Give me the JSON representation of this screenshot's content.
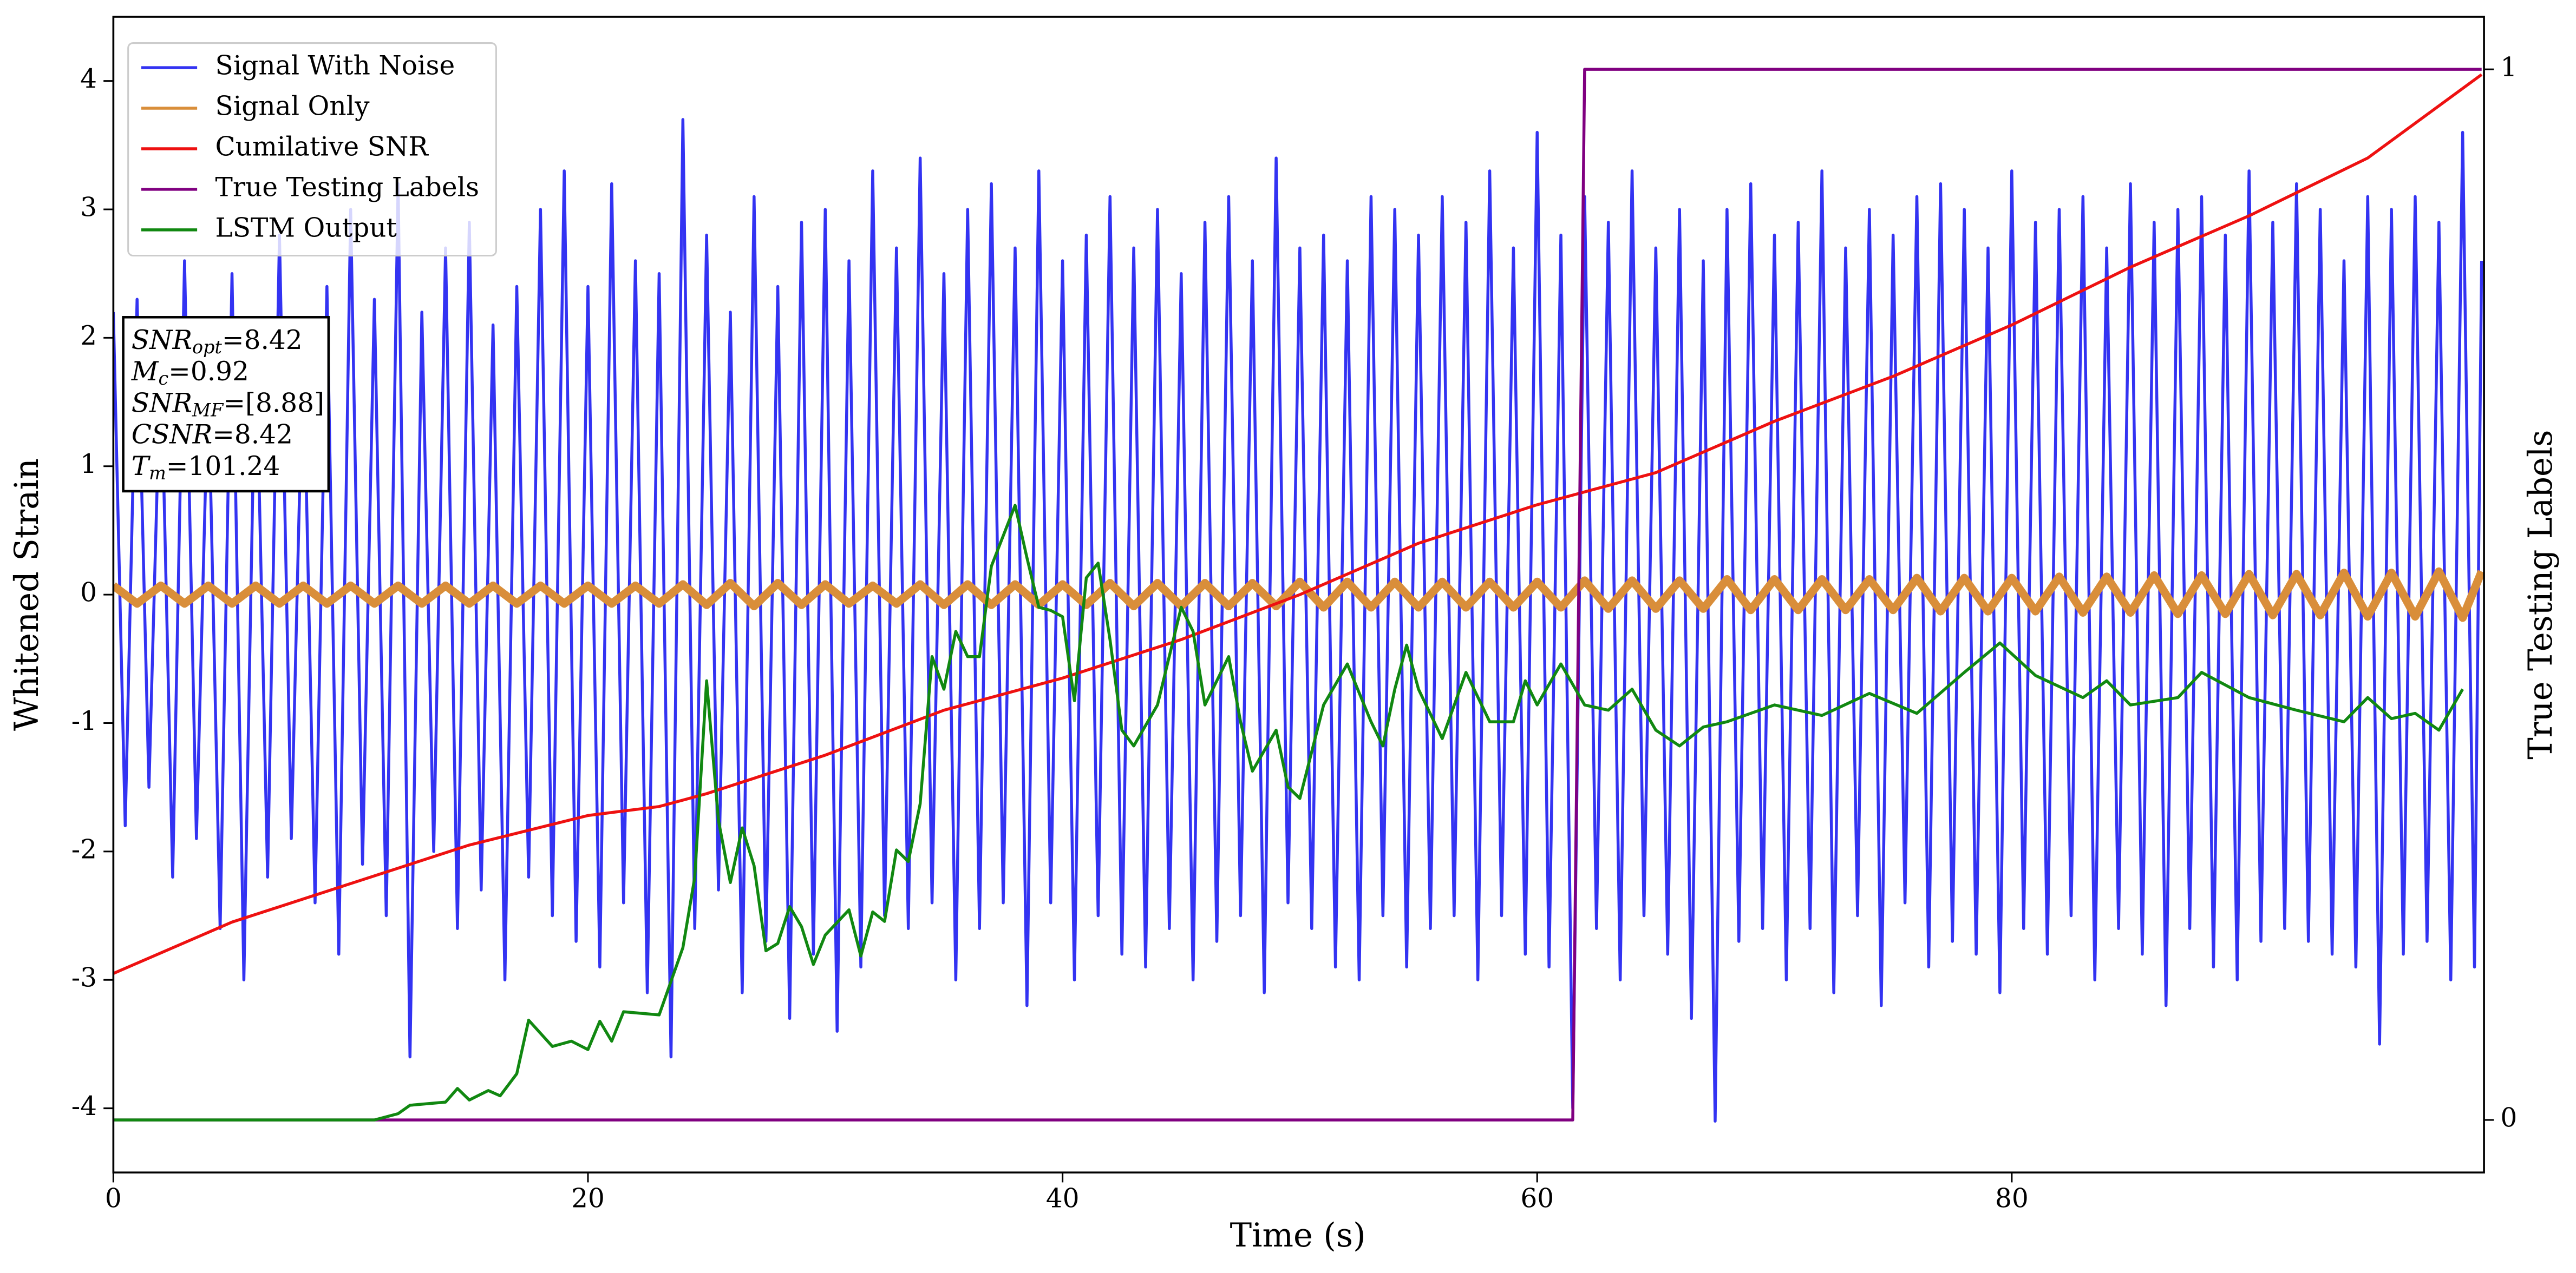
{
  "chart_data": {
    "type": "line",
    "xlabel": "Time (s)",
    "ylabel": "Whitened Strain",
    "y2label": "True Testing Labels",
    "xlim": [
      0,
      99.9
    ],
    "xticks": [
      0,
      20,
      40,
      60,
      80
    ],
    "ylim": [
      -4.5,
      4.5
    ],
    "yticks": [
      -4,
      -3,
      -2,
      -1,
      0,
      1,
      2,
      3,
      4
    ],
    "y2lim": [
      -0.05,
      1.05
    ],
    "y2ticks": [
      0,
      1
    ],
    "legend": "upper left",
    "annotation": [
      {
        "main": "SNR",
        "sub": "opt",
        "rest": "=8.42"
      },
      {
        "main": "M",
        "sub": "c",
        "rest": "=0.92"
      },
      {
        "main": "SNR",
        "sub": "MF",
        "rest": "=[8.88]"
      },
      {
        "main": "CSNR",
        "rest": "=8.42"
      },
      {
        "main": "T",
        "sub": "m",
        "rest": "=101.24"
      }
    ],
    "series": [
      {
        "name": "Signal With Noise",
        "color": "#3333f2",
        "x": [
          0,
          0.5,
          1,
          1.5,
          2,
          2.5,
          3,
          3.5,
          4,
          4.5,
          5,
          5.5,
          6,
          6.5,
          7,
          7.5,
          8,
          8.5,
          9,
          9.5,
          10,
          10.5,
          11,
          11.5,
          12,
          12.5,
          13,
          13.5,
          14,
          14.5,
          15,
          15.5,
          16,
          16.5,
          17,
          17.5,
          18,
          18.5,
          19,
          19.5,
          20,
          20.5,
          21,
          21.5,
          22,
          22.5,
          23,
          23.5,
          24,
          24.5,
          25,
          25.5,
          26,
          26.5,
          27,
          27.5,
          28,
          28.5,
          29,
          29.5,
          30,
          30.5,
          31,
          31.5,
          32,
          32.5,
          33,
          33.5,
          34,
          34.5,
          35,
          35.5,
          36,
          36.5,
          37,
          37.5,
          38,
          38.5,
          39,
          39.5,
          40,
          40.5,
          41,
          41.5,
          42,
          42.5,
          43,
          43.5,
          44,
          44.5,
          45,
          45.5,
          46,
          46.5,
          47,
          47.5,
          48,
          48.5,
          49,
          49.5,
          50,
          50.5,
          51,
          51.5,
          52,
          52.5,
          53,
          53.5,
          54,
          54.5,
          55,
          55.5,
          56,
          56.5,
          57,
          57.5,
          58,
          58.5,
          59,
          59.5,
          60,
          60.5,
          61,
          61.5,
          62,
          62.5,
          63,
          63.5,
          64,
          64.5,
          65,
          65.5,
          66,
          66.5,
          67,
          67.5,
          68,
          68.5,
          69,
          69.5,
          70,
          70.5,
          71,
          71.5,
          72,
          72.5,
          73,
          73.5,
          74,
          74.5,
          75,
          75.5,
          76,
          76.5,
          77,
          77.5,
          78,
          78.5,
          79,
          79.5,
          80,
          80.5,
          81,
          81.5,
          82,
          82.5,
          83,
          83.5,
          84,
          84.5,
          85,
          85.5,
          86,
          86.5,
          87,
          87.5,
          88,
          88.5,
          89,
          89.5,
          90,
          90.5,
          91,
          91.5,
          92,
          92.5,
          93,
          93.5,
          94,
          94.5,
          95,
          95.5,
          96,
          96.5,
          97,
          97.5,
          98,
          98.5,
          99,
          99.5,
          99.8
        ],
        "values": [
          2.2,
          -1.8,
          2.3,
          -1.5,
          1.9,
          -2.2,
          2.6,
          -1.9,
          1.7,
          -2.6,
          2.5,
          -3.0,
          2.1,
          -2.2,
          2.8,
          -1.9,
          2.0,
          -2.4,
          2.4,
          -2.8,
          3.0,
          -2.1,
          2.3,
          -2.5,
          3.2,
          -3.6,
          2.2,
          -2.0,
          2.7,
          -2.6,
          2.9,
          -2.3,
          2.1,
          -3.0,
          2.4,
          -2.2,
          3.0,
          -2.5,
          3.3,
          -2.7,
          2.4,
          -2.9,
          3.2,
          -2.4,
          2.6,
          -3.1,
          2.5,
          -3.6,
          3.7,
          -2.6,
          2.8,
          -2.3,
          2.2,
          -3.1,
          3.1,
          -2.7,
          2.4,
          -3.3,
          2.9,
          -2.8,
          3.0,
          -3.4,
          2.6,
          -2.9,
          3.3,
          -2.5,
          2.7,
          -2.6,
          3.4,
          -2.4,
          2.5,
          -3.0,
          3.0,
          -2.6,
          3.2,
          -2.4,
          2.7,
          -3.2,
          3.3,
          -2.4,
          2.6,
          -3.0,
          2.8,
          -2.5,
          3.1,
          -2.8,
          2.7,
          -2.9,
          3.0,
          -2.6,
          2.5,
          -3.0,
          2.9,
          -2.7,
          3.1,
          -2.5,
          2.6,
          -3.1,
          3.4,
          -2.4,
          2.7,
          -2.6,
          2.8,
          -2.9,
          2.6,
          -3.0,
          3.1,
          -2.5,
          3.0,
          -2.9,
          2.8,
          -2.6,
          3.1,
          -2.5,
          2.9,
          -3.0,
          3.3,
          -2.5,
          2.7,
          -2.8,
          3.6,
          -2.9,
          2.8,
          -4.0,
          3.1,
          -2.6,
          2.9,
          -3.0,
          3.3,
          -2.5,
          2.7,
          -2.8,
          3.0,
          -3.3,
          2.6,
          -4.1,
          3.0,
          -2.7,
          3.2,
          -2.6,
          2.8,
          -3.0,
          2.9,
          -2.6,
          3.3,
          -3.1,
          2.7,
          -2.5,
          3.0,
          -3.2,
          2.8,
          -2.4,
          3.1,
          -2.9,
          3.2,
          -2.7,
          3.0,
          -2.8,
          2.7,
          -3.1,
          3.3,
          -2.6,
          2.9,
          -2.8,
          3.0,
          -2.5,
          3.1,
          -3.0,
          2.7,
          -2.6,
          3.2,
          -2.8,
          2.9,
          -3.2,
          3.0,
          -2.6,
          3.1,
          -2.9,
          2.8,
          -3.0,
          3.3,
          -2.7,
          2.9,
          -2.6,
          3.2,
          -2.7,
          3.0,
          -2.8,
          2.6,
          -2.9,
          3.1,
          -3.5,
          3.0,
          -2.8,
          3.1,
          -2.7,
          2.9,
          -3.0,
          3.6,
          -2.9,
          2.6
        ]
      },
      {
        "name": "Signal Only",
        "color": "#d98e3a",
        "x": [
          0,
          1,
          2,
          3,
          4,
          5,
          6,
          7,
          8,
          9,
          10,
          11,
          12,
          13,
          14,
          15,
          16,
          17,
          18,
          19,
          20,
          21,
          22,
          23,
          24,
          25,
          26,
          27,
          28,
          29,
          30,
          31,
          32,
          33,
          34,
          35,
          36,
          37,
          38,
          39,
          40,
          41,
          42,
          43,
          44,
          45,
          46,
          47,
          48,
          49,
          50,
          51,
          52,
          53,
          54,
          55,
          56,
          57,
          58,
          59,
          60,
          61,
          62,
          63,
          64,
          65,
          66,
          67,
          68,
          69,
          70,
          71,
          72,
          73,
          74,
          75,
          76,
          77,
          78,
          79,
          80,
          81,
          82,
          83,
          84,
          85,
          86,
          87,
          88,
          89,
          90,
          91,
          92,
          93,
          94,
          95,
          96,
          97,
          98,
          99,
          99.8
        ],
        "values": [
          0.07,
          -0.07,
          0.07,
          -0.07,
          0.07,
          -0.07,
          0.07,
          -0.07,
          0.07,
          -0.07,
          0.07,
          -0.07,
          0.07,
          -0.07,
          0.07,
          -0.07,
          0.07,
          -0.07,
          0.07,
          -0.07,
          0.07,
          -0.07,
          0.07,
          -0.07,
          0.08,
          -0.08,
          0.09,
          -0.09,
          0.09,
          -0.08,
          0.08,
          -0.07,
          0.07,
          -0.07,
          0.08,
          -0.08,
          0.08,
          -0.08,
          0.08,
          -0.08,
          0.08,
          -0.08,
          0.09,
          -0.09,
          0.09,
          -0.09,
          0.09,
          -0.09,
          0.09,
          -0.09,
          0.1,
          -0.1,
          0.1,
          -0.1,
          0.1,
          -0.1,
          0.1,
          -0.1,
          0.1,
          -0.1,
          0.1,
          -0.1,
          0.11,
          -0.11,
          0.11,
          -0.11,
          0.11,
          -0.11,
          0.12,
          -0.12,
          0.12,
          -0.12,
          0.12,
          -0.12,
          0.12,
          -0.12,
          0.13,
          -0.13,
          0.13,
          -0.13,
          0.13,
          -0.13,
          0.14,
          -0.14,
          0.14,
          -0.14,
          0.15,
          -0.15,
          0.15,
          -0.15,
          0.16,
          -0.16,
          0.16,
          -0.16,
          0.17,
          -0.17,
          0.17,
          -0.17,
          0.18,
          -0.18,
          0.18
        ]
      },
      {
        "name": "Cumilative SNR",
        "color": "#ee1111",
        "x": [
          0,
          5,
          10,
          15,
          20,
          23,
          25,
          30,
          35,
          40,
          45,
          50,
          55,
          60,
          65,
          70,
          75,
          80,
          85,
          90,
          95,
          99.8
        ],
        "values": [
          -2.95,
          -2.55,
          -2.25,
          -1.95,
          -1.72,
          -1.65,
          -1.55,
          -1.25,
          -0.9,
          -0.65,
          -0.35,
          0.0,
          0.4,
          0.7,
          0.95,
          1.35,
          1.7,
          2.1,
          2.55,
          2.95,
          3.4,
          4.05
        ]
      },
      {
        "name": "True Testing Labels",
        "color": "#800080",
        "axis": "y2",
        "x": [
          0,
          61.5,
          62,
          99.8
        ],
        "values": [
          0,
          0,
          1,
          1
        ]
      },
      {
        "name": "LSTM Output",
        "color": "#118811",
        "axis": "y2",
        "x": [
          0,
          11,
          12,
          12.5,
          14,
          14.5,
          15,
          15.8,
          16.3,
          17,
          17.5,
          18.5,
          19.3,
          20,
          20.5,
          21,
          21.5,
          22.5,
          23,
          24,
          24.5,
          25,
          25.5,
          26,
          26.5,
          27,
          27.5,
          28,
          28.5,
          29,
          29.5,
          30,
          31,
          31.5,
          32,
          32.5,
          33,
          33.5,
          34,
          34.5,
          35,
          35.5,
          36,
          36.5,
          37,
          38,
          38.5,
          39,
          39.5,
          40,
          40.5,
          41,
          41.5,
          42,
          42.5,
          43,
          44,
          45,
          45.5,
          46,
          47,
          47.5,
          48,
          49,
          49.5,
          50,
          51,
          52,
          53,
          53.5,
          54,
          54.5,
          55,
          56,
          57,
          58,
          59,
          59.5,
          60,
          61,
          62,
          63,
          64,
          65,
          66,
          67,
          68,
          70,
          72,
          74,
          76,
          78,
          79.5,
          81,
          83,
          84,
          85,
          87,
          88,
          90,
          92,
          94,
          95,
          96,
          97,
          98,
          99
        ],
        "values": [
          0,
          0,
          0.006,
          0.014,
          0.017,
          0.03,
          0.019,
          0.028,
          0.023,
          0.044,
          0.095,
          0.07,
          0.075,
          0.067,
          0.094,
          0.075,
          0.103,
          0.101,
          0.1,
          0.164,
          0.231,
          0.418,
          0.285,
          0.226,
          0.278,
          0.242,
          0.161,
          0.168,
          0.203,
          0.184,
          0.148,
          0.176,
          0.2,
          0.156,
          0.198,
          0.189,
          0.257,
          0.246,
          0.301,
          0.441,
          0.41,
          0.465,
          0.441,
          0.441,
          0.527,
          0.585,
          0.535,
          0.488,
          0.485,
          0.479,
          0.399,
          0.516,
          0.53,
          0.457,
          0.371,
          0.356,
          0.395,
          0.488,
          0.465,
          0.395,
          0.441,
          0.379,
          0.332,
          0.371,
          0.317,
          0.306,
          0.395,
          0.434,
          0.379,
          0.356,
          0.41,
          0.452,
          0.41,
          0.363,
          0.426,
          0.379,
          0.379,
          0.418,
          0.395,
          0.434,
          0.395,
          0.39,
          0.41,
          0.371,
          0.356,
          0.374,
          0.379,
          0.395,
          0.385,
          0.406,
          0.387,
          0.426,
          0.454,
          0.423,
          0.402,
          0.418,
          0.395,
          0.402,
          0.426,
          0.402,
          0.39,
          0.379,
          0.402,
          0.382,
          0.387,
          0.371,
          0.41
        ]
      }
    ]
  }
}
